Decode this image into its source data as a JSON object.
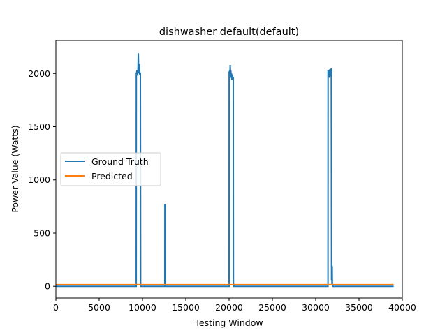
{
  "chart_data": {
    "type": "line",
    "title": "dishwasher default(default)",
    "xlabel": "Testing Window",
    "ylabel": "Power Value (Watts)",
    "xlim": [
      0,
      40000
    ],
    "ylim": [
      -110,
      2310
    ],
    "xticks": [
      0,
      5000,
      10000,
      15000,
      20000,
      25000,
      30000,
      35000,
      40000
    ],
    "yticks": [
      0,
      500,
      1000,
      1500,
      2000
    ],
    "grid": false,
    "legend_position": "center-left",
    "series": [
      {
        "name": "Ground Truth",
        "color": "#1f77b4",
        "x": [
          0,
          9280,
          9290,
          9330,
          9360,
          9400,
          9440,
          9480,
          9520,
          9560,
          9600,
          9640,
          9680,
          9720,
          9760,
          9790,
          9800,
          12580,
          12590,
          12600,
          12650,
          12660,
          12670,
          20000,
          20010,
          20040,
          20080,
          20100,
          20130,
          20160,
          20200,
          20240,
          20280,
          20320,
          20360,
          20380,
          20400,
          20420,
          20440,
          20460,
          20480,
          20500,
          20520,
          20550,
          31420,
          31430,
          31460,
          31500,
          31530,
          31560,
          31600,
          31640,
          31680,
          31720,
          31760,
          31800,
          31830,
          31860,
          31880,
          31900,
          31920,
          31950,
          39000
        ],
        "y": [
          0,
          0,
          2010,
          1990,
          2030,
          1980,
          2020,
          2000,
          2190,
          2030,
          2000,
          2090,
          1990,
          2010,
          2000,
          20,
          0,
          0,
          770,
          760,
          770,
          20,
          0,
          0,
          2020,
          1990,
          2030,
          1970,
          2080,
          1980,
          2030,
          1960,
          2000,
          1940,
          1990,
          1960,
          1980,
          1950,
          1970,
          1950,
          1970,
          30,
          20,
          0,
          0,
          2030,
          1990,
          2020,
          1960,
          2030,
          1980,
          2040,
          1990,
          2040,
          1970,
          2050,
          60,
          200,
          10,
          190,
          20,
          0,
          0
        ]
      },
      {
        "name": "Predicted",
        "color": "#ff7f0e",
        "x": [
          0,
          39000
        ],
        "y": [
          16,
          16
        ]
      }
    ]
  }
}
